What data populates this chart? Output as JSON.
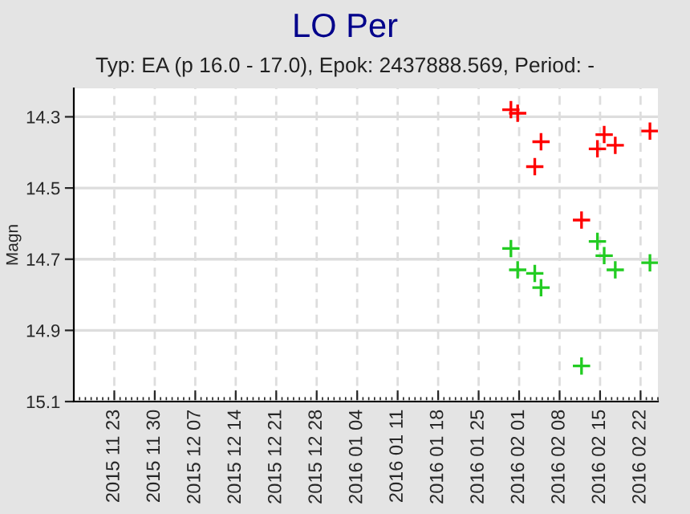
{
  "chart_data": {
    "type": "scatter",
    "title": "LO Per",
    "subtitle": "Typ: EA (p 16.0 - 17.0), Epok: 2437888.569, Period: -",
    "ylabel": "Magn",
    "series": [
      {
        "color": "#ff0000",
        "x": [
          "2016-01-30T14:00",
          "2016-01-31T18:00",
          "2016-02-03T17:00",
          "2016-02-04T19:00",
          "2016-02-11T19:00",
          "2016-02-14T13:00",
          "2016-02-15T17:00",
          "2016-02-17T15:00",
          "2016-02-23T15:00"
        ],
        "values": [
          14.28,
          14.29,
          14.44,
          14.37,
          14.59,
          14.39,
          14.35,
          14.38,
          14.34
        ]
      },
      {
        "color": "#22cc22",
        "x": [
          "2016-01-30T14:00",
          "2016-01-31T18:00",
          "2016-02-03T17:00",
          "2016-02-04T19:00",
          "2016-02-11T19:00",
          "2016-02-14T13:00",
          "2016-02-15T17:00",
          "2016-02-17T15:00",
          "2016-02-23T15:00"
        ],
        "values": [
          14.67,
          14.73,
          14.74,
          14.78,
          15.0,
          14.65,
          14.69,
          14.73,
          14.71
        ]
      }
    ],
    "xlim": [
      "2015-11-16",
      "2016-02-25"
    ],
    "xticks": [
      {
        "value": "2015-11-23",
        "label": "2015 11 23"
      },
      {
        "value": "2015-11-30",
        "label": "2015 11 30"
      },
      {
        "value": "2015-12-07",
        "label": "2015 12 07"
      },
      {
        "value": "2015-12-14",
        "label": "2015 12 14"
      },
      {
        "value": "2015-12-21",
        "label": "2015 12 21"
      },
      {
        "value": "2015-12-28",
        "label": "2015 12 28"
      },
      {
        "value": "2016-01-04",
        "label": "2016 01 04"
      },
      {
        "value": "2016-01-11",
        "label": "2016 01 11"
      },
      {
        "value": "2016-01-18",
        "label": "2016 01 18"
      },
      {
        "value": "2016-01-25",
        "label": "2016 01 25"
      },
      {
        "value": "2016-02-01",
        "label": "2016 02 01"
      },
      {
        "value": "2016-02-08",
        "label": "2016 02 08"
      },
      {
        "value": "2016-02-15",
        "label": "2016 02 15"
      },
      {
        "value": "2016-02-22",
        "label": "2016 02 22"
      }
    ],
    "ylim": [
      15.1,
      14.22
    ],
    "yticks": [
      14.3,
      14.5,
      14.7,
      14.9,
      15.1
    ],
    "grid": true,
    "marker": "cross"
  }
}
